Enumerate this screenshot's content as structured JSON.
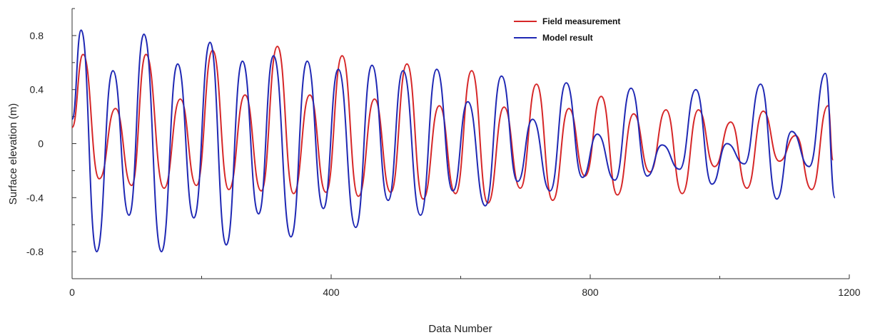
{
  "chart_data": {
    "type": "line",
    "title": "",
    "xlabel": "Data Number",
    "ylabel": "Surface elevation (m)",
    "xlim": [
      0,
      1200
    ],
    "ylim": [
      -1.0,
      1.0
    ],
    "x_ticks": [
      0,
      400,
      800,
      1200
    ],
    "x_tick_labels": [
      "0",
      "400",
      "800",
      "1200"
    ],
    "y_ticks": [
      0.8,
      0.4,
      0,
      -0.4,
      -0.8
    ],
    "y_tick_labels": [
      "0.8",
      "0.4",
      "0",
      "-0.4",
      "-0.8"
    ],
    "grid": false,
    "legend_position": "top-right",
    "series": [
      {
        "name": "Field measurement",
        "color": "#d62728",
        "x": [
          0,
          17,
          42,
          67,
          92,
          114,
          142,
          167,
          192,
          217,
          242,
          267,
          292,
          317,
          342,
          367,
          392,
          417,
          442,
          467,
          492,
          517,
          542,
          567,
          592,
          617,
          642,
          667,
          692,
          717,
          742,
          767,
          792,
          817,
          842,
          867,
          892,
          917,
          942,
          967,
          992,
          1017,
          1042,
          1067,
          1092,
          1117,
          1142,
          1167,
          1175
        ],
        "values": [
          0.12,
          0.66,
          -0.26,
          0.26,
          -0.31,
          0.66,
          -0.33,
          0.33,
          -0.31,
          0.69,
          -0.34,
          0.36,
          -0.35,
          0.72,
          -0.37,
          0.36,
          -0.36,
          0.65,
          -0.39,
          0.33,
          -0.36,
          0.59,
          -0.41,
          0.28,
          -0.37,
          0.54,
          -0.44,
          0.27,
          -0.33,
          0.44,
          -0.42,
          0.26,
          -0.24,
          0.35,
          -0.38,
          0.22,
          -0.21,
          0.25,
          -0.37,
          0.25,
          -0.17,
          0.16,
          -0.33,
          0.24,
          -0.13,
          0.06,
          -0.34,
          0.28,
          -0.12
        ]
      },
      {
        "name": "Model result",
        "color": "#1f28b4",
        "x": [
          0,
          14,
          38,
          63,
          88,
          111,
          138,
          163,
          188,
          213,
          238,
          263,
          288,
          311,
          338,
          363,
          388,
          411,
          438,
          463,
          488,
          511,
          538,
          563,
          588,
          611,
          638,
          663,
          688,
          711,
          738,
          763,
          788,
          811,
          838,
          863,
          888,
          911,
          938,
          963,
          988,
          1011,
          1038,
          1063,
          1088,
          1111,
          1138,
          1163,
          1178
        ],
        "values": [
          0.18,
          0.84,
          -0.8,
          0.54,
          -0.53,
          0.81,
          -0.8,
          0.59,
          -0.55,
          0.75,
          -0.75,
          0.61,
          -0.52,
          0.65,
          -0.69,
          0.61,
          -0.48,
          0.55,
          -0.62,
          0.58,
          -0.42,
          0.54,
          -0.53,
          0.55,
          -0.35,
          0.31,
          -0.46,
          0.5,
          -0.28,
          0.18,
          -0.35,
          0.45,
          -0.25,
          0.07,
          -0.27,
          0.41,
          -0.24,
          -0.01,
          -0.19,
          0.4,
          -0.3,
          0.0,
          -0.15,
          0.44,
          -0.41,
          0.09,
          -0.17,
          0.52,
          -0.4
        ]
      }
    ]
  }
}
